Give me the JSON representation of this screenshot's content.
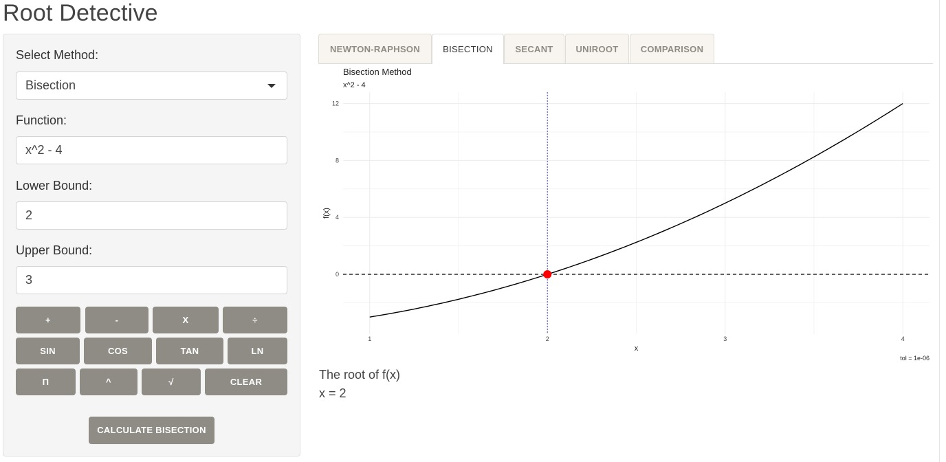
{
  "app": {
    "title": "Root Detective"
  },
  "sidebar": {
    "method_label": "Select Method:",
    "method_value": "Bisection",
    "function_label": "Function:",
    "function_value": "x^2 - 4",
    "lower_label": "Lower Bound:",
    "lower_value": "2",
    "upper_label": "Upper Bound:",
    "upper_value": "3",
    "keypad": {
      "row1": [
        "+",
        "-",
        "X",
        "÷"
      ],
      "row2": [
        "SIN",
        "COS",
        "TAN",
        "LN"
      ],
      "row3": [
        "Π",
        "^",
        "√",
        "CLEAR"
      ]
    },
    "calculate_label": "CALCULATE BISECTION"
  },
  "tabs": [
    {
      "label": "NEWTON-RAPHSON",
      "active": false
    },
    {
      "label": "BISECTION",
      "active": true
    },
    {
      "label": "SECANT",
      "active": false
    },
    {
      "label": "UNIROOT",
      "active": false
    },
    {
      "label": "COMPARISON",
      "active": false
    }
  ],
  "chart_data": {
    "type": "line",
    "title": "Bisection Method",
    "subtitle": "x^2 - 4",
    "xlabel": "x",
    "ylabel": "f(x)",
    "caption": "tol = 1e-06",
    "xlim": [
      0.85,
      4.15
    ],
    "ylim": [
      -4.2,
      12.8
    ],
    "x_ticks": [
      1,
      2,
      3,
      4
    ],
    "y_ticks": [
      0,
      4,
      8,
      12
    ],
    "series": [
      {
        "x": [
          1,
          1.5,
          2,
          2.5,
          3,
          3.5,
          4
        ],
        "y": [
          -3,
          -1.75,
          0,
          2.25,
          5,
          8.25,
          12
        ]
      }
    ],
    "function_curve": "x^2 - 4",
    "root": {
      "x": 2,
      "y": 0
    },
    "hline_y": 0,
    "vline_x": 2,
    "colors": {
      "curve": "#000000",
      "root": "#ff0000",
      "vline": "#6666cc",
      "grid": "#ebebeb"
    }
  },
  "result": {
    "line1": "The root of f(x)",
    "line2": "x = 2"
  }
}
